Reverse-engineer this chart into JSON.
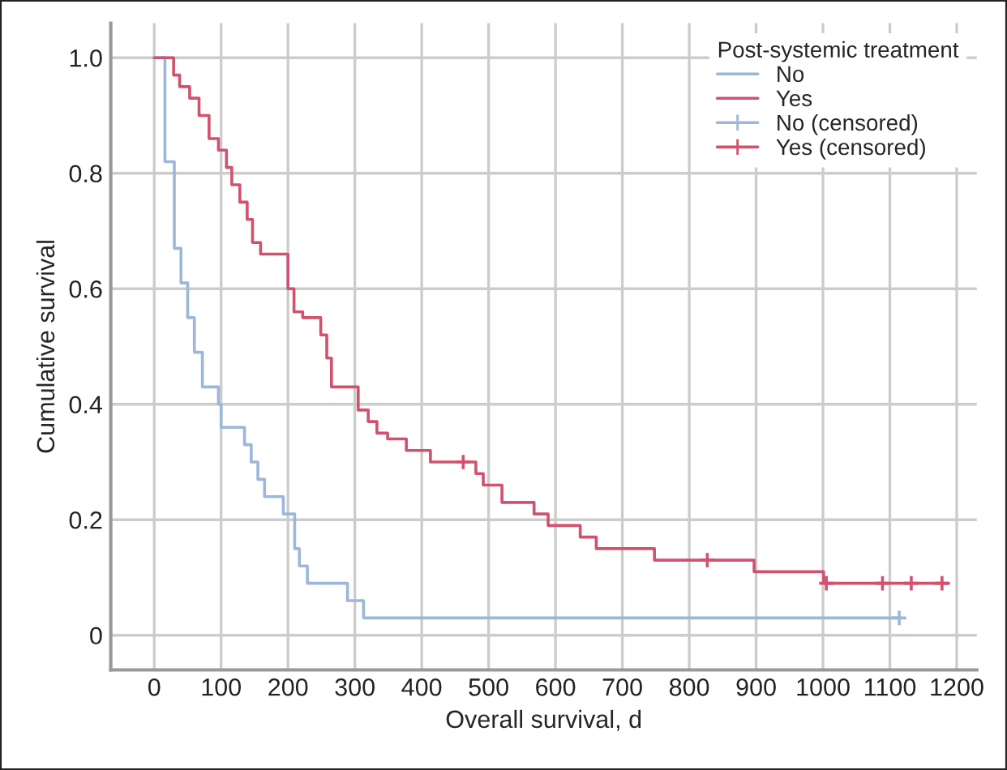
{
  "chart_data": {
    "type": "step",
    "xlabel": "Overall survival, d",
    "ylabel": "Cumulative survival",
    "legend_title": "Post-systemic treatment",
    "series": [
      {
        "name": "No",
        "color": "#9bb8d8",
        "marker": "none",
        "x": [
          0,
          16,
          30,
          40,
          50,
          60,
          72,
          96,
          100,
          135,
          145,
          155,
          165,
          193,
          210,
          217,
          229,
          289,
          313,
          1114
        ],
        "values": [
          1.0,
          0.82,
          0.67,
          0.61,
          0.55,
          0.49,
          0.43,
          0.4,
          0.36,
          0.33,
          0.3,
          0.27,
          0.24,
          0.21,
          0.15,
          0.12,
          0.09,
          0.06,
          0.03,
          0.03
        ]
      },
      {
        "name": "Yes",
        "color": "#d0526e",
        "marker": "none",
        "x": [
          0,
          29,
          38,
          53,
          67,
          82,
          96,
          108,
          116,
          128,
          139,
          147,
          159,
          200,
          209,
          222,
          249,
          258,
          265,
          305,
          320,
          333,
          349,
          377,
          413,
          481,
          492,
          520,
          568,
          589,
          637,
          661,
          748,
          897,
          1001,
          1188
        ],
        "values": [
          1.0,
          0.97,
          0.95,
          0.93,
          0.9,
          0.86,
          0.84,
          0.81,
          0.78,
          0.75,
          0.72,
          0.68,
          0.66,
          0.6,
          0.56,
          0.55,
          0.52,
          0.48,
          0.43,
          0.39,
          0.37,
          0.35,
          0.34,
          0.32,
          0.3,
          0.28,
          0.26,
          0.23,
          0.21,
          0.19,
          0.17,
          0.15,
          0.13,
          0.11,
          0.09,
          0.09
        ]
      },
      {
        "name": "No (censored)",
        "type": "scatter",
        "color": "#9bb8d8",
        "marker": "cross",
        "x": [
          1114
        ],
        "values": [
          0.03
        ]
      },
      {
        "name": "Yes (censored)",
        "type": "scatter",
        "color": "#d0526e",
        "marker": "cross",
        "x": [
          462,
          827,
          1005,
          1089,
          1132,
          1178
        ],
        "values": [
          0.3,
          0.13,
          0.09,
          0.09,
          0.09,
          0.09
        ]
      }
    ],
    "xlim": [
      -65,
      1230
    ],
    "ylim": [
      -0.06,
      1.06
    ],
    "xticks": [
      0,
      100,
      200,
      300,
      400,
      500,
      600,
      700,
      800,
      900,
      1000,
      1100,
      1200
    ],
    "yticks": [
      0,
      0.2,
      0.4,
      0.6,
      0.8,
      {
        "value": 1.0,
        "label": "1.0"
      }
    ],
    "grid": true,
    "legend": "top right"
  }
}
